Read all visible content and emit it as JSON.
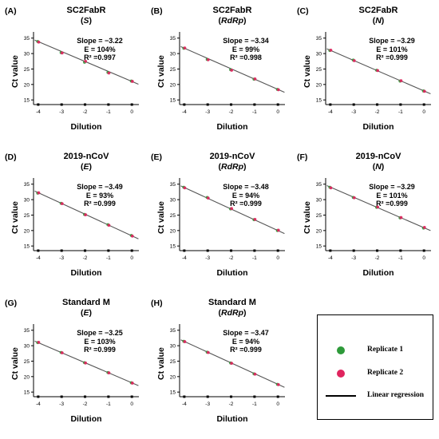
{
  "chart_data": [
    {
      "panel": "(A)",
      "title": "SC2FabR",
      "subtitle": "S",
      "type": "scatter",
      "xlabel": "Dilution",
      "ylabel": "Ct value",
      "xticks": [
        -4,
        -3,
        -2,
        -1,
        0
      ],
      "yticks": [
        15,
        20,
        25,
        30,
        35
      ],
      "xlim": [
        -4.2,
        0.3
      ],
      "ylim": [
        13.5,
        37
      ],
      "slope_text": "Slope = −3.22",
      "e_text": "E = 104%",
      "r2_text": "R² =0.997",
      "line": {
        "slope": -3.22,
        "intercept": 21.0
      },
      "series": [
        {
          "name": "Replicate 1",
          "x": [
            -4,
            -3,
            -2,
            -1,
            0
          ],
          "y": [
            33.9,
            30.3,
            27.2,
            23.9,
            21.1
          ]
        },
        {
          "name": "Replicate 2",
          "x": [
            -4,
            -3,
            -2,
            -1,
            0
          ],
          "y": [
            33.7,
            30.2,
            27.5,
            23.7,
            21.0
          ]
        }
      ]
    },
    {
      "panel": "(B)",
      "title": "SC2FabR",
      "subtitle": "RdRp",
      "type": "scatter",
      "xlabel": "Dilution",
      "ylabel": "Ct value",
      "xticks": [
        -4,
        -3,
        -2,
        -1,
        0
      ],
      "yticks": [
        15,
        20,
        25,
        30,
        35
      ],
      "xlim": [
        -4.2,
        0.3
      ],
      "ylim": [
        13.5,
        37
      ],
      "slope_text": "Slope = −3.34",
      "e_text": "E = 99%",
      "r2_text": "R² =0.998",
      "line": {
        "slope": -3.34,
        "intercept": 18.4
      },
      "series": [
        {
          "name": "Replicate 1",
          "x": [
            -4,
            -3,
            -2,
            -1,
            0
          ],
          "y": [
            31.7,
            28.1,
            24.8,
            21.7,
            18.4
          ]
        },
        {
          "name": "Replicate 2",
          "x": [
            -4,
            -3,
            -2,
            -1,
            0
          ],
          "y": [
            31.8,
            28.0,
            24.6,
            21.8,
            18.3
          ]
        }
      ]
    },
    {
      "panel": "(C)",
      "title": "SC2FabR",
      "subtitle": "N",
      "type": "scatter",
      "xlabel": "Dilution",
      "ylabel": "Ct value",
      "xticks": [
        -4,
        -3,
        -2,
        -1,
        0
      ],
      "yticks": [
        15,
        20,
        25,
        30,
        35
      ],
      "xlim": [
        -4.2,
        0.3
      ],
      "ylim": [
        13.5,
        37
      ],
      "slope_text": "Slope = −3.29",
      "e_text": "E = 101%",
      "r2_text": "R² =0.999",
      "line": {
        "slope": -3.29,
        "intercept": 17.9
      },
      "series": [
        {
          "name": "Replicate 1",
          "x": [
            -4,
            -3,
            -2,
            -1,
            0
          ],
          "y": [
            31.0,
            27.9,
            24.6,
            21.1,
            17.9
          ]
        },
        {
          "name": "Replicate 2",
          "x": [
            -4,
            -3,
            -2,
            -1,
            0
          ],
          "y": [
            31.1,
            27.7,
            24.5,
            21.2,
            17.8
          ]
        }
      ]
    },
    {
      "panel": "(D)",
      "title": "2019-nCoV",
      "subtitle": "E",
      "type": "scatter",
      "xlabel": "Dilution",
      "ylabel": "Ct value",
      "xticks": [
        -4,
        -3,
        -2,
        -1,
        0
      ],
      "yticks": [
        15,
        20,
        25,
        30,
        35
      ],
      "xlim": [
        -4.2,
        0.3
      ],
      "ylim": [
        13.5,
        37
      ],
      "slope_text": "Slope = −3.49",
      "e_text": "E = 93%",
      "r2_text": "R² =0.999",
      "line": {
        "slope": -3.49,
        "intercept": 18.3
      },
      "series": [
        {
          "name": "Replicate 1",
          "x": [
            -4,
            -3,
            -2,
            -1,
            0
          ],
          "y": [
            32.1,
            28.8,
            25.2,
            21.9,
            18.4
          ]
        },
        {
          "name": "Replicate 2",
          "x": [
            -4,
            -3,
            -2,
            -1,
            0
          ],
          "y": [
            32.2,
            28.7,
            25.1,
            21.7,
            18.2
          ]
        }
      ]
    },
    {
      "panel": "(E)",
      "title": "2019-nCoV",
      "subtitle": "RdRp",
      "type": "scatter",
      "xlabel": "Dilution",
      "ylabel": "Ct value",
      "xticks": [
        -4,
        -3,
        -2,
        -1,
        0
      ],
      "yticks": [
        15,
        20,
        25,
        30,
        35
      ],
      "xlim": [
        -4.2,
        0.3
      ],
      "ylim": [
        13.5,
        37
      ],
      "slope_text": "Slope = −3.48",
      "e_text": "E = 94%",
      "r2_text": "R² =0.999",
      "line": {
        "slope": -3.48,
        "intercept": 20.0
      },
      "series": [
        {
          "name": "Replicate 1",
          "x": [
            -4,
            -3,
            -2,
            -1,
            0
          ],
          "y": [
            34.0,
            30.7,
            27.0,
            23.5,
            20.0
          ]
        },
        {
          "name": "Replicate 2",
          "x": [
            -4,
            -3,
            -2,
            -1,
            0
          ],
          "y": [
            33.8,
            30.5,
            27.1,
            23.6,
            20.1
          ]
        }
      ]
    },
    {
      "panel": "(F)",
      "title": "2019-nCoV",
      "subtitle": "N",
      "type": "scatter",
      "xlabel": "Dilution",
      "ylabel": "Ct value",
      "xticks": [
        -4,
        -3,
        -2,
        -1,
        0
      ],
      "yticks": [
        15,
        20,
        25,
        30,
        35
      ],
      "xlim": [
        -4.2,
        0.3
      ],
      "ylim": [
        13.5,
        37
      ],
      "slope_text": "Slope = −3.29",
      "e_text": "E = 101%",
      "r2_text": "R² =0.999",
      "line": {
        "slope": -3.29,
        "intercept": 20.9
      },
      "series": [
        {
          "name": "Replicate 1",
          "x": [
            -4,
            -3,
            -2,
            -1,
            0
          ],
          "y": [
            34.0,
            30.7,
            27.5,
            24.1,
            20.8
          ]
        },
        {
          "name": "Replicate 2",
          "x": [
            -4,
            -3,
            -2,
            -1,
            0
          ],
          "y": [
            33.8,
            30.6,
            27.6,
            24.2,
            21.0
          ]
        }
      ]
    },
    {
      "panel": "(G)",
      "title": "Standard M",
      "subtitle": "E",
      "type": "scatter",
      "xlabel": "Dilution",
      "ylabel": "Ct value",
      "xticks": [
        -4,
        -3,
        -2,
        -1,
        0
      ],
      "yticks": [
        15,
        20,
        25,
        30,
        35
      ],
      "xlim": [
        -4.2,
        0.3
      ],
      "ylim": [
        13.5,
        37
      ],
      "slope_text": "Slope = −3.25",
      "e_text": "E = 103%",
      "r2_text": "R² =0.999",
      "line": {
        "slope": -3.25,
        "intercept": 18.0
      },
      "series": [
        {
          "name": "Replicate 1",
          "x": [
            -4,
            -3,
            -2,
            -1,
            0
          ],
          "y": [
            31.0,
            27.8,
            24.5,
            21.3,
            18.0
          ]
        },
        {
          "name": "Replicate 2",
          "x": [
            -4,
            -3,
            -2,
            -1,
            0
          ],
          "y": [
            31.1,
            27.7,
            24.4,
            21.2,
            17.9
          ]
        }
      ]
    },
    {
      "panel": "(H)",
      "title": "Standard M",
      "subtitle": "RdRp",
      "type": "scatter",
      "xlabel": "Dilution",
      "ylabel": "Ct value",
      "xticks": [
        -4,
        -3,
        -2,
        -1,
        0
      ],
      "yticks": [
        15,
        20,
        25,
        30,
        35
      ],
      "xlim": [
        -4.2,
        0.3
      ],
      "ylim": [
        13.5,
        37
      ],
      "slope_text": "Slope = −3.47",
      "e_text": "E = 94%",
      "r2_text": "R² =0.999",
      "line": {
        "slope": -3.47,
        "intercept": 17.5
      },
      "series": [
        {
          "name": "Replicate 1",
          "x": [
            -4,
            -3,
            -2,
            -1,
            0
          ],
          "y": [
            31.4,
            27.9,
            24.4,
            20.9,
            17.5
          ]
        },
        {
          "name": "Replicate 2",
          "x": [
            -4,
            -3,
            -2,
            -1,
            0
          ],
          "y": [
            31.3,
            27.8,
            24.3,
            20.8,
            17.4
          ]
        }
      ]
    }
  ],
  "legend": {
    "items": [
      {
        "label": "Replicate 1",
        "kind": "dot",
        "color": "#2e9a3a"
      },
      {
        "label": "Replicate 2",
        "kind": "dot",
        "color": "#e0245e"
      },
      {
        "label": "Linear regression",
        "kind": "line",
        "color": "#000000"
      }
    ]
  },
  "colors": {
    "replicate1": "#2e9a3a",
    "replicate2": "#e0245e",
    "regression": "#555555",
    "axis": "#000000"
  }
}
